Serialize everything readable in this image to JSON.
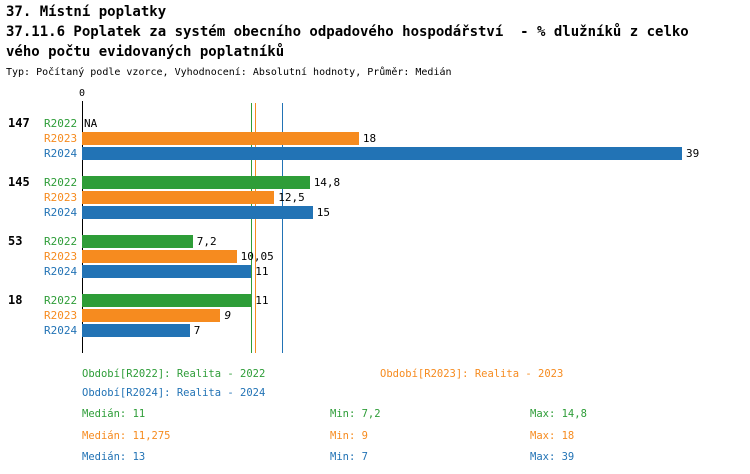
{
  "title": {
    "line1": "37. Místní poplatky",
    "line2": "37.11.6 Poplatek za systém obecního odpadového hospodářství  - % dlužníků z celko",
    "line3": "vého počtu evidovaných poplatníků",
    "meta": "Typ: Počítaný podle vzorce, Vyhodnocení: Absolutní hodnoty, Průměr: Medián"
  },
  "colors": {
    "r2022": "#2e9d38",
    "r2023": "#f68b1f",
    "r2024": "#2273b5",
    "axis": "#000000"
  },
  "chart_data": {
    "type": "bar",
    "orientation": "horizontal",
    "x_axis": {
      "origin_label": "0",
      "min": 0,
      "max": 39
    },
    "grid": false,
    "groups": [
      {
        "label": "147",
        "bars": [
          {
            "series": "R2022",
            "value": null,
            "display": "NA"
          },
          {
            "series": "R2023",
            "value": 18,
            "display": "18"
          },
          {
            "series": "R2024",
            "value": 39,
            "display": "39"
          }
        ]
      },
      {
        "label": "145",
        "bars": [
          {
            "series": "R2022",
            "value": 14.8,
            "display": "14,8"
          },
          {
            "series": "R2023",
            "value": 12.5,
            "display": "12,5"
          },
          {
            "series": "R2024",
            "value": 15,
            "display": "15"
          }
        ]
      },
      {
        "label": "53",
        "bars": [
          {
            "series": "R2022",
            "value": 7.2,
            "display": "7,2"
          },
          {
            "series": "R2023",
            "value": 10.05,
            "display": "10,05"
          },
          {
            "series": "R2024",
            "value": 11,
            "display": "11"
          }
        ]
      },
      {
        "label": "18",
        "bars": [
          {
            "series": "R2022",
            "value": 11,
            "display": "11"
          },
          {
            "series": "R2023",
            "value": 9,
            "display": "9",
            "italic": true
          },
          {
            "series": "R2024",
            "value": 7,
            "display": "7"
          }
        ]
      }
    ],
    "median_lines": [
      {
        "series": "R2022",
        "value": 11
      },
      {
        "series": "R2023",
        "value": 11.275
      },
      {
        "series": "R2024",
        "value": 13
      }
    ]
  },
  "legend": [
    {
      "series": "R2022",
      "label": "Období[R2022]: Realita - 2022"
    },
    {
      "series": "R2023",
      "label": "Období[R2023]: Realita - 2023"
    },
    {
      "series": "R2024",
      "label": "Období[R2024]: Realita - 2024"
    }
  ],
  "stats": [
    {
      "series": "R2022",
      "median": "Medián: 11",
      "min": "Min: 7,2",
      "max": "Max: 14,8"
    },
    {
      "series": "R2023",
      "median": "Medián: 11,275",
      "min": "Min: 9",
      "max": "Max: 18"
    },
    {
      "series": "R2024",
      "median": "Medián: 13",
      "min": "Min: 7",
      "max": "Max: 39"
    }
  ]
}
